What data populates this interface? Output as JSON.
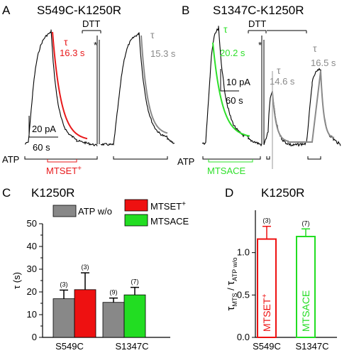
{
  "panelA": {
    "letter": "A",
    "title": "S549C-K1250R",
    "tau1_symbol": "τ",
    "tau1_value": "16.3 s",
    "tau2_symbol": "τ",
    "tau2_value": "15.3 s",
    "dtt": "DTT",
    "star": "*",
    "scale_y": "20 pA",
    "scale_x": "60 s",
    "atp": "ATP",
    "reagent": "MTSET",
    "colors": {
      "trace": "#000000",
      "fit1": "#e8191b",
      "fit2": "#8a8a8a"
    }
  },
  "panelB": {
    "letter": "B",
    "title": "S1347C-K1250R",
    "tau1_symbol": "τ",
    "tau1_value": "20.2 s",
    "tau2_symbol": "τ",
    "tau2_value": "14.6 s",
    "tau3_symbol": "τ",
    "tau3_value": "16.5 s",
    "dtt": "DTT",
    "star": "*",
    "scale_y": "10 pA",
    "scale_x": "60 s",
    "atp": "ATP",
    "reagent": "MTSACE",
    "colors": {
      "trace": "#000000",
      "fit1": "#2ee02a",
      "fit2": "#8a8a8a"
    }
  },
  "chart_data": [
    {
      "panel": "C",
      "type": "bar",
      "title": "K1250R",
      "ylabel": "τ (s)",
      "ylim": [
        0,
        50
      ],
      "yticks": [
        0,
        10,
        20,
        30,
        40,
        50
      ],
      "categories": [
        "S549C",
        "S1347C"
      ],
      "legend": [
        {
          "name": "ATP w/o",
          "color": "#888888"
        },
        {
          "name": "MTSET",
          "superscript": "+",
          "color": "#ee1111"
        },
        {
          "name": "MTSACE",
          "color": "#22dd22"
        }
      ],
      "bars": [
        {
          "category": "S549C",
          "series": "ATP w/o",
          "value": 17.0,
          "error": 3.8,
          "n": "(3)",
          "color": "#888888"
        },
        {
          "category": "S549C",
          "series": "MTSET",
          "value": 21.0,
          "error": 7.4,
          "n": "(3)",
          "color": "#ee1111"
        },
        {
          "category": "S1347C",
          "series": "ATP w/o",
          "value": 15.4,
          "error": 1.9,
          "n": "(9)",
          "color": "#888888"
        },
        {
          "category": "S1347C",
          "series": "MTSACE",
          "value": 18.7,
          "error": 3.3,
          "n": "(7)",
          "color": "#22dd22"
        }
      ]
    },
    {
      "panel": "D",
      "type": "bar",
      "title": "K1250R",
      "ylabel_main": "τ",
      "ylabel_sub1": "MTS",
      "ylabel_sep": " / ",
      "ylabel_sub2": "ATP w/o",
      "ylim": [
        0,
        1.5
      ],
      "yticks": [
        "0.0",
        "0.5",
        "1.0"
      ],
      "ytick_values": [
        0,
        0.5,
        1.0
      ],
      "categories": [
        "S549C",
        "S1347C"
      ],
      "bars": [
        {
          "category": "S549C",
          "label": "MTSET",
          "superscript": "+",
          "value": 1.16,
          "error": 0.15,
          "n": "(3)",
          "color": "#ee1111"
        },
        {
          "category": "S1347C",
          "label": "MTSACE",
          "value": 1.19,
          "error": 0.09,
          "n": "(7)",
          "color": "#22dd22"
        }
      ]
    }
  ]
}
